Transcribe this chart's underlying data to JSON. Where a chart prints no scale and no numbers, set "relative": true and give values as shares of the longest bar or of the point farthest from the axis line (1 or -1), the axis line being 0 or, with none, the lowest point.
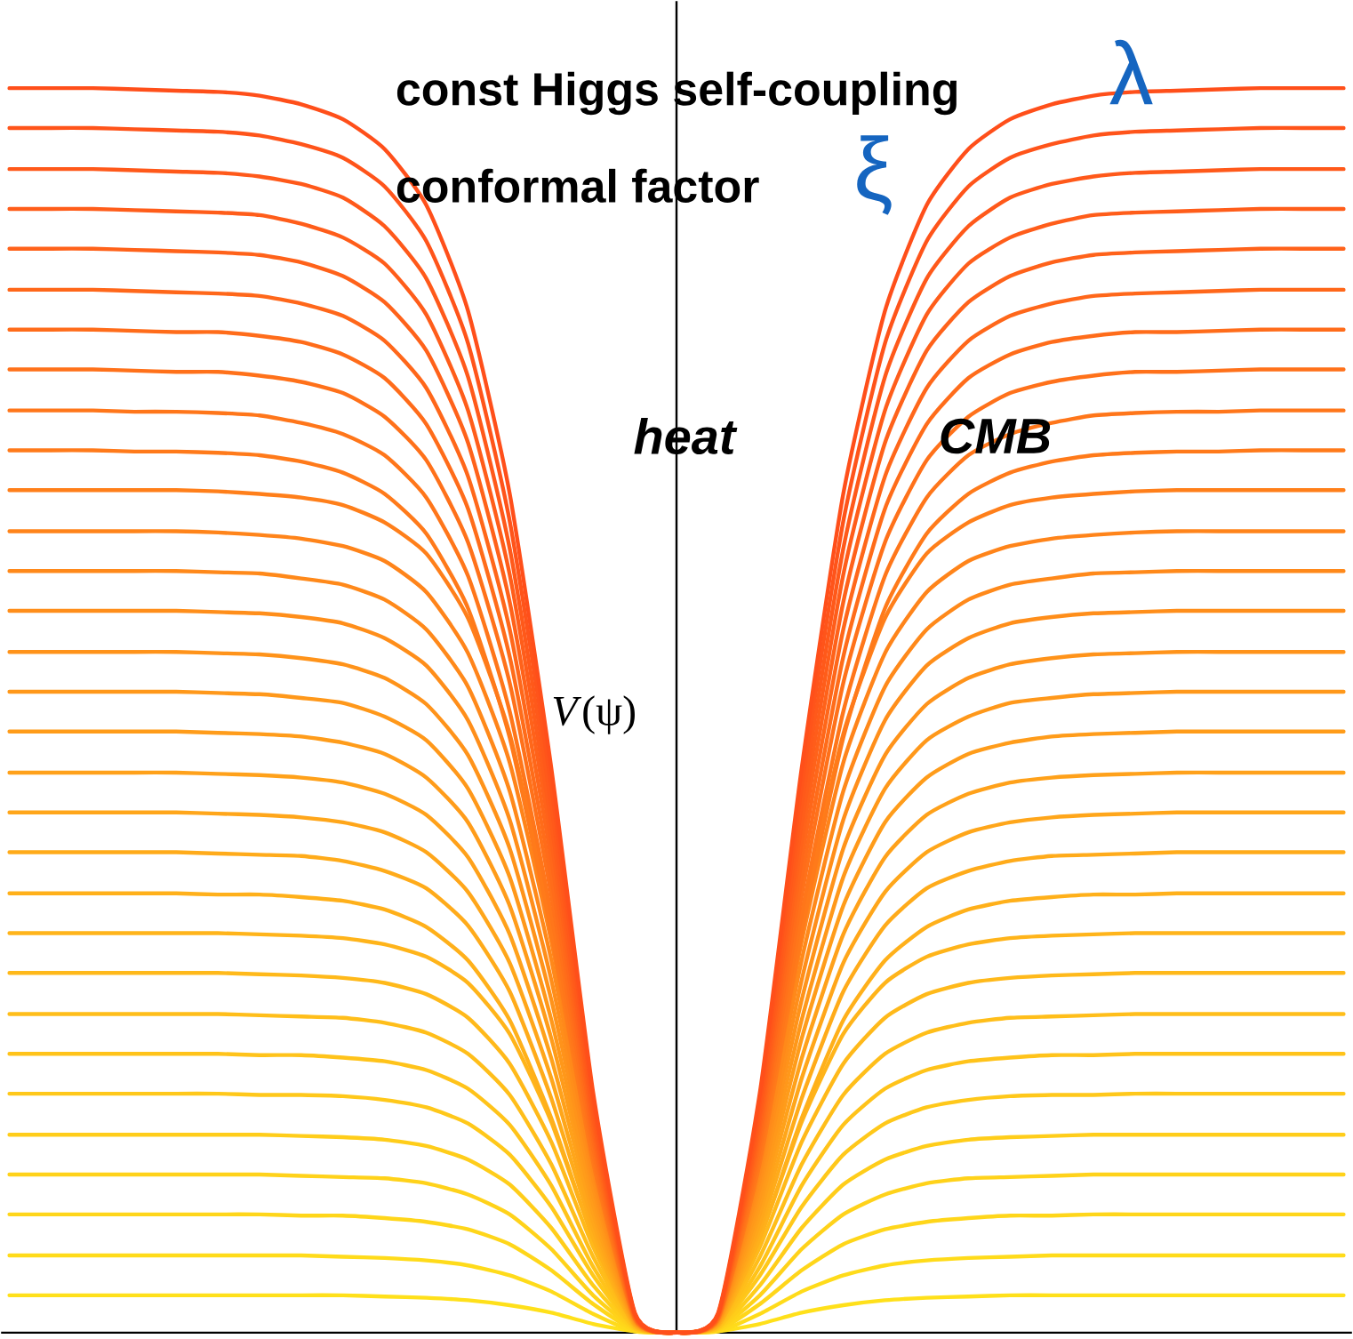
{
  "chart_data": {
    "type": "line",
    "relative": true,
    "ylabel": "*V*(ψ)",
    "annotations": [
      "const Higgs self-coupling",
      "λ",
      "conformal factor",
      "ξ",
      "heat",
      "CMB"
    ],
    "categories": [
      null,
      null,
      null,
      null,
      null,
      null,
      null,
      null,
      null,
      null,
      null,
      null,
      null,
      null,
      null,
      null,
      null,
      null,
      null,
      null,
      null,
      null,
      null,
      null,
      null,
      null,
      null,
      null,
      null,
      null,
      null,
      null,
      null
    ],
    "series": [
      {
        "color": "#ffe01a",
        "values": [
          0.03,
          0.03,
          0.03,
          0.03,
          0.03,
          0.03,
          0.03,
          0.03,
          0.03,
          0.029,
          0.028,
          0.026,
          0.022,
          0.016,
          0.007,
          0.001,
          0,
          0.001,
          0.007,
          0.016,
          0.022,
          0.026,
          0.028,
          0.029,
          0.03,
          0.03,
          0.03,
          0.03,
          0.03,
          0.03,
          0.03,
          0.03,
          0.03
        ]
      },
      {
        "color": "#ffdb1a",
        "values": [
          0.062,
          0.062,
          0.062,
          0.062,
          0.062,
          0.062,
          0.062,
          0.062,
          0.061,
          0.06,
          0.058,
          0.054,
          0.046,
          0.033,
          0.015,
          0.001,
          0,
          0.001,
          0.015,
          0.033,
          0.046,
          0.054,
          0.058,
          0.06,
          0.061,
          0.062,
          0.062,
          0.062,
          0.062,
          0.062,
          0.062,
          0.062,
          0.062
        ]
      },
      {
        "color": "#ffd61a",
        "values": [
          0.095,
          0.095,
          0.095,
          0.095,
          0.095,
          0.095,
          0.095,
          0.094,
          0.094,
          0.092,
          0.089,
          0.083,
          0.071,
          0.05,
          0.023,
          0.002,
          0,
          0.002,
          0.023,
          0.05,
          0.071,
          0.083,
          0.089,
          0.092,
          0.094,
          0.094,
          0.095,
          0.095,
          0.095,
          0.095,
          0.095,
          0.095,
          0.095
        ]
      },
      {
        "color": "#ffd21a",
        "values": [
          0.127,
          0.127,
          0.127,
          0.127,
          0.127,
          0.127,
          0.127,
          0.126,
          0.125,
          0.124,
          0.12,
          0.111,
          0.095,
          0.067,
          0.03,
          0.003,
          0,
          0.003,
          0.03,
          0.067,
          0.095,
          0.111,
          0.12,
          0.124,
          0.125,
          0.126,
          0.127,
          0.127,
          0.127,
          0.127,
          0.127,
          0.127,
          0.127
        ]
      },
      {
        "color": "#ffcd1a",
        "values": [
          0.159,
          0.159,
          0.159,
          0.159,
          0.159,
          0.159,
          0.159,
          0.158,
          0.157,
          0.155,
          0.15,
          0.139,
          0.119,
          0.084,
          0.038,
          0.003,
          0,
          0.003,
          0.038,
          0.084,
          0.119,
          0.139,
          0.15,
          0.155,
          0.157,
          0.158,
          0.159,
          0.159,
          0.159,
          0.159,
          0.159,
          0.159,
          0.159
        ]
      },
      {
        "color": "#ffc81a",
        "values": [
          0.192,
          0.192,
          0.192,
          0.192,
          0.192,
          0.192,
          0.191,
          0.191,
          0.19,
          0.187,
          0.181,
          0.168,
          0.143,
          0.101,
          0.046,
          0.004,
          0,
          0.004,
          0.046,
          0.101,
          0.143,
          0.168,
          0.181,
          0.187,
          0.19,
          0.191,
          0.191,
          0.192,
          0.192,
          0.192,
          0.192,
          0.192,
          0.192
        ]
      },
      {
        "color": "#ffc31a",
        "values": [
          0.224,
          0.224,
          0.224,
          0.224,
          0.224,
          0.224,
          0.223,
          0.223,
          0.221,
          0.218,
          0.211,
          0.196,
          0.167,
          0.118,
          0.053,
          0.004,
          0,
          0.004,
          0.053,
          0.118,
          0.167,
          0.196,
          0.211,
          0.218,
          0.221,
          0.223,
          0.223,
          0.224,
          0.224,
          0.224,
          0.224,
          0.224,
          0.224
        ]
      },
      {
        "color": "#ffbe1a",
        "values": [
          0.256,
          0.256,
          0.256,
          0.256,
          0.256,
          0.256,
          0.255,
          0.254,
          0.253,
          0.249,
          0.241,
          0.224,
          0.191,
          0.135,
          0.061,
          0.005,
          0,
          0.005,
          0.061,
          0.135,
          0.191,
          0.224,
          0.241,
          0.249,
          0.253,
          0.254,
          0.255,
          0.256,
          0.256,
          0.256,
          0.256,
          0.256,
          0.256
        ]
      },
      {
        "color": "#ffb91a",
        "values": [
          0.289,
          0.289,
          0.289,
          0.289,
          0.289,
          0.289,
          0.288,
          0.287,
          0.285,
          0.281,
          0.272,
          0.253,
          0.216,
          0.153,
          0.069,
          0.006,
          0,
          0.006,
          0.069,
          0.153,
          0.216,
          0.253,
          0.272,
          0.281,
          0.285,
          0.287,
          0.288,
          0.289,
          0.289,
          0.289,
          0.289,
          0.289,
          0.289
        ]
      },
      {
        "color": "#ffb41a",
        "values": [
          0.321,
          0.321,
          0.321,
          0.321,
          0.321,
          0.321,
          0.32,
          0.319,
          0.317,
          0.312,
          0.302,
          0.281,
          0.24,
          0.169,
          0.076,
          0.006,
          0,
          0.006,
          0.076,
          0.169,
          0.24,
          0.281,
          0.302,
          0.312,
          0.317,
          0.319,
          0.32,
          0.321,
          0.321,
          0.321,
          0.321,
          0.321,
          0.321
        ]
      },
      {
        "color": "#ffb01a",
        "values": [
          0.353,
          0.353,
          0.353,
          0.353,
          0.353,
          0.352,
          0.352,
          0.35,
          0.347,
          0.34,
          0.326,
          0.299,
          0.251,
          0.172,
          0.076,
          0.006,
          0,
          0.006,
          0.076,
          0.172,
          0.251,
          0.299,
          0.326,
          0.34,
          0.347,
          0.35,
          0.352,
          0.352,
          0.353,
          0.353,
          0.353,
          0.353,
          0.353
        ]
      },
      {
        "color": "#ffab1a",
        "values": [
          0.386,
          0.386,
          0.386,
          0.386,
          0.386,
          0.385,
          0.384,
          0.383,
          0.379,
          0.371,
          0.357,
          0.327,
          0.274,
          0.188,
          0.083,
          0.007,
          0,
          0.007,
          0.083,
          0.188,
          0.274,
          0.327,
          0.357,
          0.371,
          0.379,
          0.383,
          0.384,
          0.385,
          0.386,
          0.386,
          0.386,
          0.386,
          0.386
        ]
      },
      {
        "color": "#ffa61a",
        "values": [
          0.418,
          0.418,
          0.418,
          0.418,
          0.418,
          0.417,
          0.416,
          0.414,
          0.41,
          0.402,
          0.386,
          0.354,
          0.297,
          0.204,
          0.089,
          0.008,
          0,
          0.008,
          0.089,
          0.204,
          0.297,
          0.354,
          0.386,
          0.402,
          0.41,
          0.414,
          0.416,
          0.417,
          0.418,
          0.418,
          0.418,
          0.418,
          0.418
        ]
      },
      {
        "color": "#ffa11a",
        "values": [
          0.45,
          0.45,
          0.45,
          0.45,
          0.45,
          0.449,
          0.448,
          0.446,
          0.442,
          0.433,
          0.416,
          0.382,
          0.32,
          0.22,
          0.096,
          0.008,
          0,
          0.008,
          0.096,
          0.22,
          0.32,
          0.382,
          0.416,
          0.433,
          0.442,
          0.446,
          0.448,
          0.449,
          0.45,
          0.45,
          0.45,
          0.45,
          0.45
        ]
      },
      {
        "color": "#ff9c1a",
        "values": [
          0.483,
          0.483,
          0.483,
          0.483,
          0.483,
          0.482,
          0.481,
          0.479,
          0.474,
          0.465,
          0.446,
          0.41,
          0.343,
          0.236,
          0.103,
          0.009,
          0,
          0.009,
          0.103,
          0.236,
          0.343,
          0.41,
          0.446,
          0.465,
          0.474,
          0.479,
          0.481,
          0.482,
          0.483,
          0.483,
          0.483,
          0.483,
          0.483
        ]
      },
      {
        "color": "#ff981a",
        "values": [
          0.515,
          0.515,
          0.515,
          0.515,
          0.515,
          0.514,
          0.513,
          0.51,
          0.506,
          0.495,
          0.476,
          0.437,
          0.366,
          0.251,
          0.11,
          0.009,
          0,
          0.009,
          0.11,
          0.251,
          0.366,
          0.437,
          0.476,
          0.495,
          0.506,
          0.51,
          0.513,
          0.514,
          0.515,
          0.515,
          0.515,
          0.515,
          0.515
        ]
      },
      {
        "color": "#ff931a",
        "values": [
          0.547,
          0.547,
          0.547,
          0.547,
          0.547,
          0.546,
          0.545,
          0.542,
          0.537,
          0.526,
          0.505,
          0.464,
          0.389,
          0.267,
          0.117,
          0.01,
          0,
          0.01,
          0.117,
          0.267,
          0.389,
          0.464,
          0.505,
          0.526,
          0.537,
          0.542,
          0.545,
          0.546,
          0.547,
          0.547,
          0.547,
          0.547,
          0.547
        ]
      },
      {
        "color": "#ff8e1a",
        "values": [
          0.58,
          0.58,
          0.58,
          0.58,
          0.58,
          0.579,
          0.578,
          0.575,
          0.57,
          0.558,
          0.536,
          0.492,
          0.412,
          0.283,
          0.124,
          0.01,
          0,
          0.01,
          0.124,
          0.283,
          0.412,
          0.492,
          0.536,
          0.558,
          0.57,
          0.575,
          0.578,
          0.579,
          0.58,
          0.58,
          0.58,
          0.58,
          0.58
        ]
      },
      {
        "color": "#ff891a",
        "values": [
          0.612,
          0.612,
          0.612,
          0.612,
          0.612,
          0.611,
          0.61,
          0.606,
          0.601,
          0.589,
          0.565,
          0.519,
          0.435,
          0.299,
          0.131,
          0.011,
          0,
          0.011,
          0.131,
          0.299,
          0.435,
          0.519,
          0.565,
          0.589,
          0.601,
          0.606,
          0.61,
          0.611,
          0.612,
          0.612,
          0.612,
          0.612,
          0.612
        ]
      },
      {
        "color": "#ff841a",
        "values": [
          0.644,
          0.644,
          0.644,
          0.644,
          0.644,
          0.643,
          0.641,
          0.638,
          0.632,
          0.62,
          0.595,
          0.546,
          0.458,
          0.314,
          0.138,
          0.012,
          0,
          0.012,
          0.138,
          0.314,
          0.458,
          0.546,
          0.595,
          0.62,
          0.632,
          0.638,
          0.641,
          0.643,
          0.644,
          0.644,
          0.644,
          0.644,
          0.644
        ]
      },
      {
        "color": "#ff7f1a",
        "values": [
          0.677,
          0.677,
          0.677,
          0.677,
          0.677,
          0.676,
          0.674,
          0.671,
          0.665,
          0.651,
          0.626,
          0.574,
          0.481,
          0.33,
          0.145,
          0.012,
          0,
          0.012,
          0.145,
          0.33,
          0.481,
          0.574,
          0.626,
          0.651,
          0.665,
          0.671,
          0.674,
          0.676,
          0.677,
          0.677,
          0.677,
          0.677,
          0.677
        ]
      },
      {
        "color": "#ff7a1a",
        "values": [
          0.709,
          0.709,
          0.709,
          0.708,
          0.708,
          0.707,
          0.705,
          0.7,
          0.691,
          0.674,
          0.642,
          0.582,
          0.478,
          0.321,
          0.137,
          0.011,
          0,
          0.011,
          0.137,
          0.321,
          0.478,
          0.582,
          0.642,
          0.674,
          0.691,
          0.7,
          0.705,
          0.707,
          0.708,
          0.708,
          0.709,
          0.709,
          0.709
        ]
      },
      {
        "color": "#ff761a",
        "values": [
          0.741,
          0.741,
          0.741,
          0.74,
          0.74,
          0.739,
          0.737,
          0.731,
          0.722,
          0.705,
          0.671,
          0.608,
          0.499,
          0.336,
          0.143,
          0.012,
          0,
          0.012,
          0.143,
          0.336,
          0.499,
          0.608,
          0.671,
          0.705,
          0.722,
          0.731,
          0.737,
          0.739,
          0.74,
          0.74,
          0.741,
          0.741,
          0.741
        ]
      },
      {
        "color": "#ff711a",
        "values": [
          0.774,
          0.774,
          0.774,
          0.773,
          0.772,
          0.772,
          0.769,
          0.764,
          0.755,
          0.736,
          0.701,
          0.635,
          0.522,
          0.351,
          0.149,
          0.012,
          0,
          0.012,
          0.149,
          0.351,
          0.522,
          0.635,
          0.701,
          0.736,
          0.755,
          0.764,
          0.769,
          0.772,
          0.772,
          0.773,
          0.774,
          0.774,
          0.774
        ]
      },
      {
        "color": "#ff6c1a",
        "values": [
          0.806,
          0.806,
          0.806,
          0.805,
          0.804,
          0.804,
          0.801,
          0.796,
          0.786,
          0.767,
          0.73,
          0.662,
          0.543,
          0.365,
          0.156,
          0.013,
          0,
          0.013,
          0.156,
          0.365,
          0.543,
          0.662,
          0.73,
          0.767,
          0.786,
          0.796,
          0.801,
          0.804,
          0.804,
          0.805,
          0.806,
          0.806,
          0.806
        ]
      },
      {
        "color": "#ff671a",
        "values": [
          0.838,
          0.838,
          0.838,
          0.837,
          0.836,
          0.835,
          0.833,
          0.827,
          0.817,
          0.797,
          0.759,
          0.688,
          0.565,
          0.38,
          0.162,
          0.013,
          0,
          0.013,
          0.162,
          0.38,
          0.565,
          0.688,
          0.759,
          0.797,
          0.817,
          0.827,
          0.833,
          0.835,
          0.836,
          0.837,
          0.838,
          0.838,
          0.838
        ]
      },
      {
        "color": "#ff621a",
        "values": [
          0.871,
          0.871,
          0.871,
          0.87,
          0.869,
          0.868,
          0.866,
          0.86,
          0.849,
          0.828,
          0.789,
          0.715,
          0.587,
          0.395,
          0.168,
          0.014,
          0,
          0.014,
          0.168,
          0.395,
          0.587,
          0.715,
          0.789,
          0.828,
          0.849,
          0.86,
          0.866,
          0.868,
          0.869,
          0.87,
          0.871,
          0.871,
          0.871
        ]
      },
      {
        "color": "#ff5d1a",
        "values": [
          0.903,
          0.903,
          0.903,
          0.902,
          0.901,
          0.9,
          0.898,
          0.891,
          0.88,
          0.859,
          0.818,
          0.741,
          0.609,
          0.409,
          0.174,
          0.014,
          0,
          0.014,
          0.174,
          0.409,
          0.609,
          0.741,
          0.818,
          0.859,
          0.88,
          0.891,
          0.898,
          0.9,
          0.901,
          0.902,
          0.903,
          0.903,
          0.903
        ]
      },
      {
        "color": "#ff591a",
        "values": [
          0.935,
          0.935,
          0.935,
          0.934,
          0.933,
          0.932,
          0.929,
          0.923,
          0.912,
          0.889,
          0.847,
          0.768,
          0.63,
          0.424,
          0.18,
          0.015,
          0,
          0.015,
          0.18,
          0.424,
          0.63,
          0.768,
          0.847,
          0.889,
          0.912,
          0.923,
          0.929,
          0.932,
          0.933,
          0.934,
          0.935,
          0.935,
          0.935
        ]
      },
      {
        "color": "#ff541a",
        "values": [
          0.968,
          0.968,
          0.968,
          0.967,
          0.966,
          0.965,
          0.962,
          0.955,
          0.944,
          0.921,
          0.877,
          0.795,
          0.652,
          0.439,
          0.187,
          0.015,
          0,
          0.015,
          0.187,
          0.439,
          0.652,
          0.795,
          0.877,
          0.921,
          0.944,
          0.955,
          0.962,
          0.965,
          0.966,
          0.967,
          0.968,
          0.968,
          0.968
        ]
      },
      {
        "color": "#ff4f1a",
        "values": [
          1,
          1,
          1,
          0.999,
          0.998,
          0.997,
          0.994,
          0.987,
          0.975,
          0.951,
          0.906,
          0.821,
          0.674,
          0.453,
          0.193,
          0.016,
          0,
          0.016,
          0.193,
          0.453,
          0.674,
          0.821,
          0.906,
          0.951,
          0.975,
          0.987,
          0.994,
          0.997,
          0.998,
          0.999,
          1,
          1,
          1
        ]
      }
    ]
  }
}
